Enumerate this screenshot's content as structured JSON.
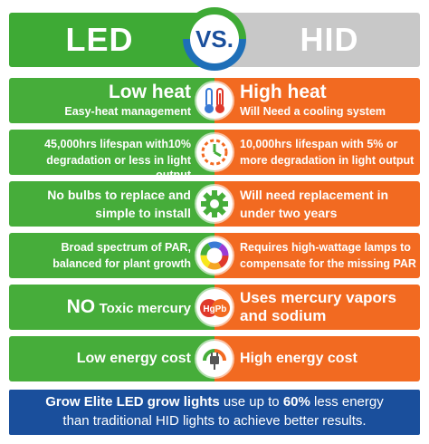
{
  "header": {
    "left": "LED",
    "vs": "VS.",
    "right": "HID"
  },
  "rows": [
    {
      "led_title": "Low heat",
      "led_sub": "Easy-heat management",
      "hid_title": "High heat",
      "hid_sub": "Will Need a cooling system",
      "icon": "thermometer-icon"
    },
    {
      "led_line1": "45,000hrs lifespan with10%",
      "led_line2": "degradation or less in light output",
      "hid_line1": "10,000hrs lifespan with 5% or",
      "hid_line2": "more degradation in light output",
      "icon": "timer-icon"
    },
    {
      "led_line1": "No bulbs to replace and",
      "led_line2": "simple to install",
      "hid_line1": "Will need replacement in",
      "hid_line2": "under two years",
      "icon": "gear-icon"
    },
    {
      "led_line1": "Broad spectrum of PAR,",
      "led_line2": "balanced for plant growth",
      "hid_line1": "Requires high-wattage lamps to",
      "hid_line2": "compensate for the missing PAR",
      "icon": "color-wheel-icon"
    },
    {
      "led_prefix": "NO",
      "led_text": "Toxic mercury",
      "hid_line1": "Uses mercury vapors",
      "hid_line2": "and sodium",
      "icon": "mercury-icon",
      "icon_labels": [
        "Hg",
        "Pb"
      ]
    },
    {
      "led_text": "Low energy cost",
      "hid_text": "High energy cost",
      "icon": "plug-icon"
    }
  ],
  "footer": {
    "bold1": "Grow Elite LED grow lights",
    "text1": " use up to ",
    "bold2": "60%",
    "text2": " less energy",
    "line2": "than traditional HID lights to achieve better results."
  },
  "colors": {
    "led_green": "#46ad3a",
    "hid_orange": "#f26a21",
    "footer_blue": "#1a4f9c",
    "hid_gray": "#c8c8c8"
  }
}
